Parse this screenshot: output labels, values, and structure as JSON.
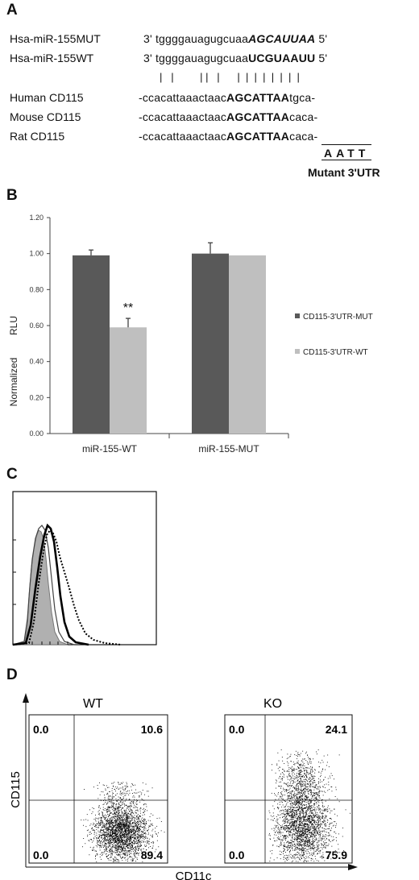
{
  "panels": {
    "a": "A",
    "b": "B",
    "c": "C",
    "d": "D"
  },
  "panel_a": {
    "rows": [
      {
        "label": "Hsa-miR-155MUT",
        "prefix": "3' ",
        "plain": "tggggauagugcuaa",
        "bold": "AGCAUUAA",
        "suffix": " 5'",
        "style": "bold-italic"
      },
      {
        "label": "Hsa-miR-155WT",
        "prefix": "3' ",
        "plain": "tggggauagugcuaa",
        "bold": "UCGUAAUU",
        "suffix": " 5'",
        "style": "bold"
      },
      {
        "label": "Human CD115",
        "prefix": "",
        "plain": "-ccacattaaactaac",
        "bold": "AGCATTAA",
        "suffix": "tgca-",
        "style": "bold"
      },
      {
        "label": "Mouse CD115",
        "prefix": "",
        "plain": "-ccacattaaactaac",
        "bold": "AGCATTAA",
        "suffix": "caca-",
        "style": "bold"
      },
      {
        "label": "Rat  CD115",
        "prefix": "",
        "plain": "-ccacattaaactaac",
        "bold": "AGCATTAA",
        "suffix": "caca-",
        "style": "bold"
      }
    ],
    "match_bars": "|   |         | |   |      |  |  |  |  |  |  |  |",
    "mutant_seq": "AATT",
    "mutant_label": "Mutant 3'UTR"
  },
  "chart_data": [
    {
      "type": "bar",
      "categories": [
        "miR-155-WT",
        "miR-155-MUT"
      ],
      "series": [
        {
          "name": "CD115-3'UTR-MUT",
          "values": [
            0.99,
            1.0
          ],
          "errors": [
            0.03,
            0.06
          ],
          "color": "#595959"
        },
        {
          "name": "CD115-3'UTR-WT",
          "values": [
            0.59,
            0.99
          ],
          "errors": [
            0.05,
            0.0
          ],
          "color": "#bfbfbf"
        }
      ],
      "ylabel_lines": [
        "Normalized",
        "RLU"
      ],
      "ylim": [
        0,
        1.2
      ],
      "yticks": [
        "0.00",
        "0.20",
        "0.40",
        "0.60",
        "0.80",
        "1.00",
        "1.20"
      ],
      "annotation": "**",
      "legend_position": "right"
    },
    {
      "type": "scatter",
      "title": "WT",
      "xlabel": "CD11c",
      "ylabel": "CD115",
      "quadrants": {
        "upper_left": "0.0",
        "upper_right": "10.6",
        "lower_left": "0.0",
        "lower_right": "89.4"
      }
    },
    {
      "type": "scatter",
      "title": "KO",
      "xlabel": "CD11c",
      "ylabel": "CD115",
      "quadrants": {
        "upper_left": "0.0",
        "upper_right": "24.1",
        "lower_left": "0.0",
        "lower_right": "75.9"
      }
    }
  ],
  "colors": {
    "dark_bar": "#595959",
    "light_bar": "#bfbfbf",
    "histogram_fill": "#b0b0b0"
  }
}
